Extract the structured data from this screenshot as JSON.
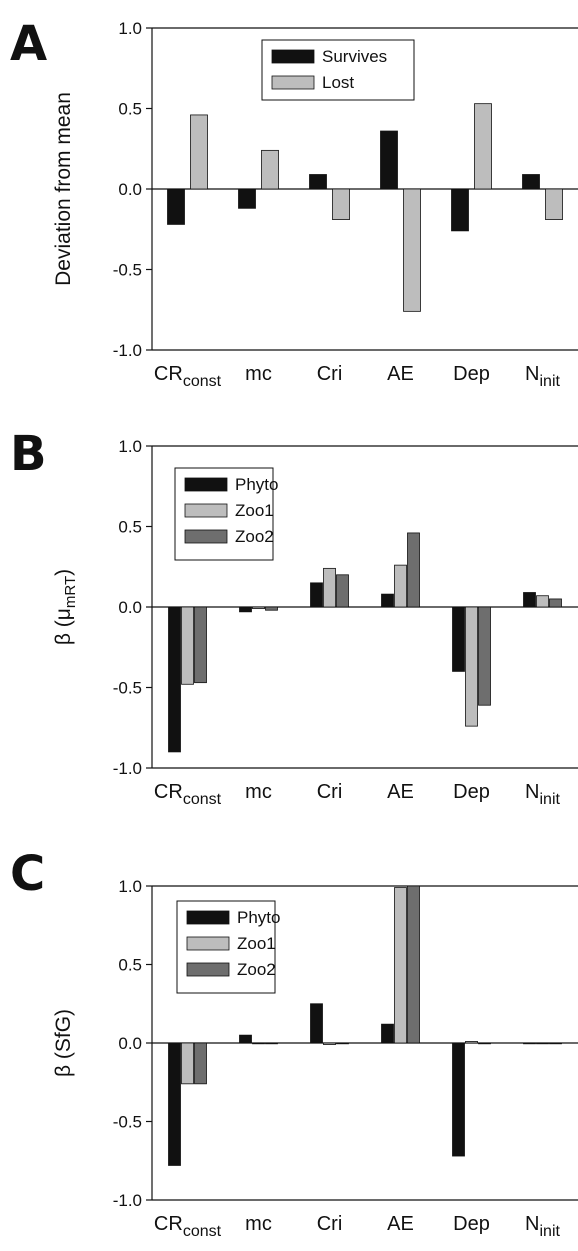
{
  "chart_data": [
    {
      "type": "bar",
      "panel_label": "A",
      "ylabel": "Deviation from mean",
      "ylabel_parts": [],
      "ylim": [
        -1.0,
        1.0
      ],
      "yticks": [
        "1.0",
        "0.5",
        "0.0",
        "-0.5",
        "-1.0"
      ],
      "ytick_values": [
        1.0,
        0.5,
        0.0,
        -0.5,
        -1.0
      ],
      "categories": [
        {
          "main": "CR",
          "sub": "const"
        },
        {
          "main": "mc",
          "sub": ""
        },
        {
          "main": "Cri",
          "sub": ""
        },
        {
          "main": "AE",
          "sub": ""
        },
        {
          "main": "Dep",
          "sub": ""
        },
        {
          "main": "N",
          "sub": "init"
        }
      ],
      "series": [
        {
          "name": "Survives",
          "color": "#111111",
          "values": [
            -0.22,
            -0.12,
            0.09,
            0.36,
            -0.26,
            0.09
          ]
        },
        {
          "name": "Lost",
          "color": "#bdbdbd",
          "values": [
            0.46,
            0.24,
            -0.19,
            -0.76,
            0.53,
            -0.19
          ]
        }
      ],
      "legend_position": "top-center",
      "grid": false
    },
    {
      "type": "bar",
      "panel_label": "B",
      "ylabel": "",
      "ylabel_parts": [
        "β (μ",
        "mRT",
        ")"
      ],
      "ylim": [
        -1.0,
        1.0
      ],
      "yticks": [
        "1.0",
        "0.5",
        "0.0",
        "-0.5",
        "-1.0"
      ],
      "ytick_values": [
        1.0,
        0.5,
        0.0,
        -0.5,
        -1.0
      ],
      "categories": [
        {
          "main": "CR",
          "sub": "const"
        },
        {
          "main": "mc",
          "sub": ""
        },
        {
          "main": "Cri",
          "sub": ""
        },
        {
          "main": "AE",
          "sub": ""
        },
        {
          "main": "Dep",
          "sub": ""
        },
        {
          "main": "N",
          "sub": "init"
        }
      ],
      "series": [
        {
          "name": "Phyto",
          "color": "#111111",
          "values": [
            -0.9,
            -0.03,
            0.15,
            0.08,
            -0.4,
            0.09
          ]
        },
        {
          "name": "Zoo1",
          "color": "#bdbdbd",
          "values": [
            -0.48,
            -0.01,
            0.24,
            0.26,
            -0.74,
            0.07
          ]
        },
        {
          "name": "Zoo2",
          "color": "#6e6e6e",
          "values": [
            -0.47,
            -0.02,
            0.2,
            0.46,
            -0.61,
            0.05
          ]
        }
      ],
      "legend_position": "top-left",
      "grid": false
    },
    {
      "type": "bar",
      "panel_label": "C",
      "ylabel": "β (SfG)",
      "ylabel_parts": [],
      "ylim": [
        -1.0,
        1.0
      ],
      "yticks": [
        "1.0",
        "0.5",
        "0.0",
        "-0.5",
        "-1.0"
      ],
      "ytick_values": [
        1.0,
        0.5,
        0.0,
        -0.5,
        -1.0
      ],
      "categories": [
        {
          "main": "CR",
          "sub": "const"
        },
        {
          "main": "mc",
          "sub": ""
        },
        {
          "main": "Cri",
          "sub": ""
        },
        {
          "main": "AE",
          "sub": ""
        },
        {
          "main": "Dep",
          "sub": ""
        },
        {
          "main": "N",
          "sub": "init"
        }
      ],
      "series": [
        {
          "name": "Phyto",
          "color": "#111111",
          "values": [
            -0.78,
            0.05,
            0.25,
            0.12,
            -0.72,
            0.0
          ]
        },
        {
          "name": "Zoo1",
          "color": "#bdbdbd",
          "values": [
            -0.26,
            0.0,
            -0.01,
            0.99,
            0.01,
            0.0
          ]
        },
        {
          "name": "Zoo2",
          "color": "#6e6e6e",
          "values": [
            -0.26,
            0.0,
            0.0,
            1.0,
            0.0,
            0.0
          ]
        }
      ],
      "legend_position": "top-left",
      "grid": false
    }
  ]
}
